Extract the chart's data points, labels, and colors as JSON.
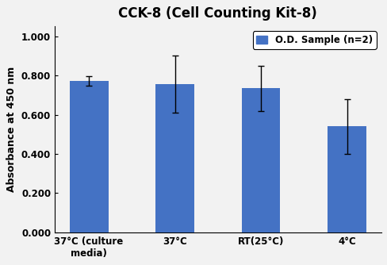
{
  "title": "CCK-8 (Cell Counting Kit-8)",
  "ylabel": "Absorbance at 450 nm",
  "categories": [
    "37°C (culture\nmedia)",
    "37°C",
    "RT(25°C)",
    "4°C"
  ],
  "values": [
    0.772,
    0.757,
    0.735,
    0.54
  ],
  "errors": [
    0.025,
    0.145,
    0.115,
    0.14
  ],
  "bar_color": "#4472C4",
  "fig_bg_color": "#F2F2F2",
  "axes_bg_color": "#F2F2F2",
  "ylim": [
    0.0,
    1.05
  ],
  "yticks": [
    0.0,
    0.2,
    0.4,
    0.6,
    0.8,
    1.0
  ],
  "ytick_labels": [
    "0.000",
    "0.200",
    "0.400",
    "0.600",
    "0.800",
    "1.000"
  ],
  "legend_label": "O.D. Sample (n=2)",
  "title_fontsize": 12,
  "label_fontsize": 9,
  "tick_fontsize": 8.5,
  "legend_fontsize": 8.5,
  "bar_width": 0.45
}
